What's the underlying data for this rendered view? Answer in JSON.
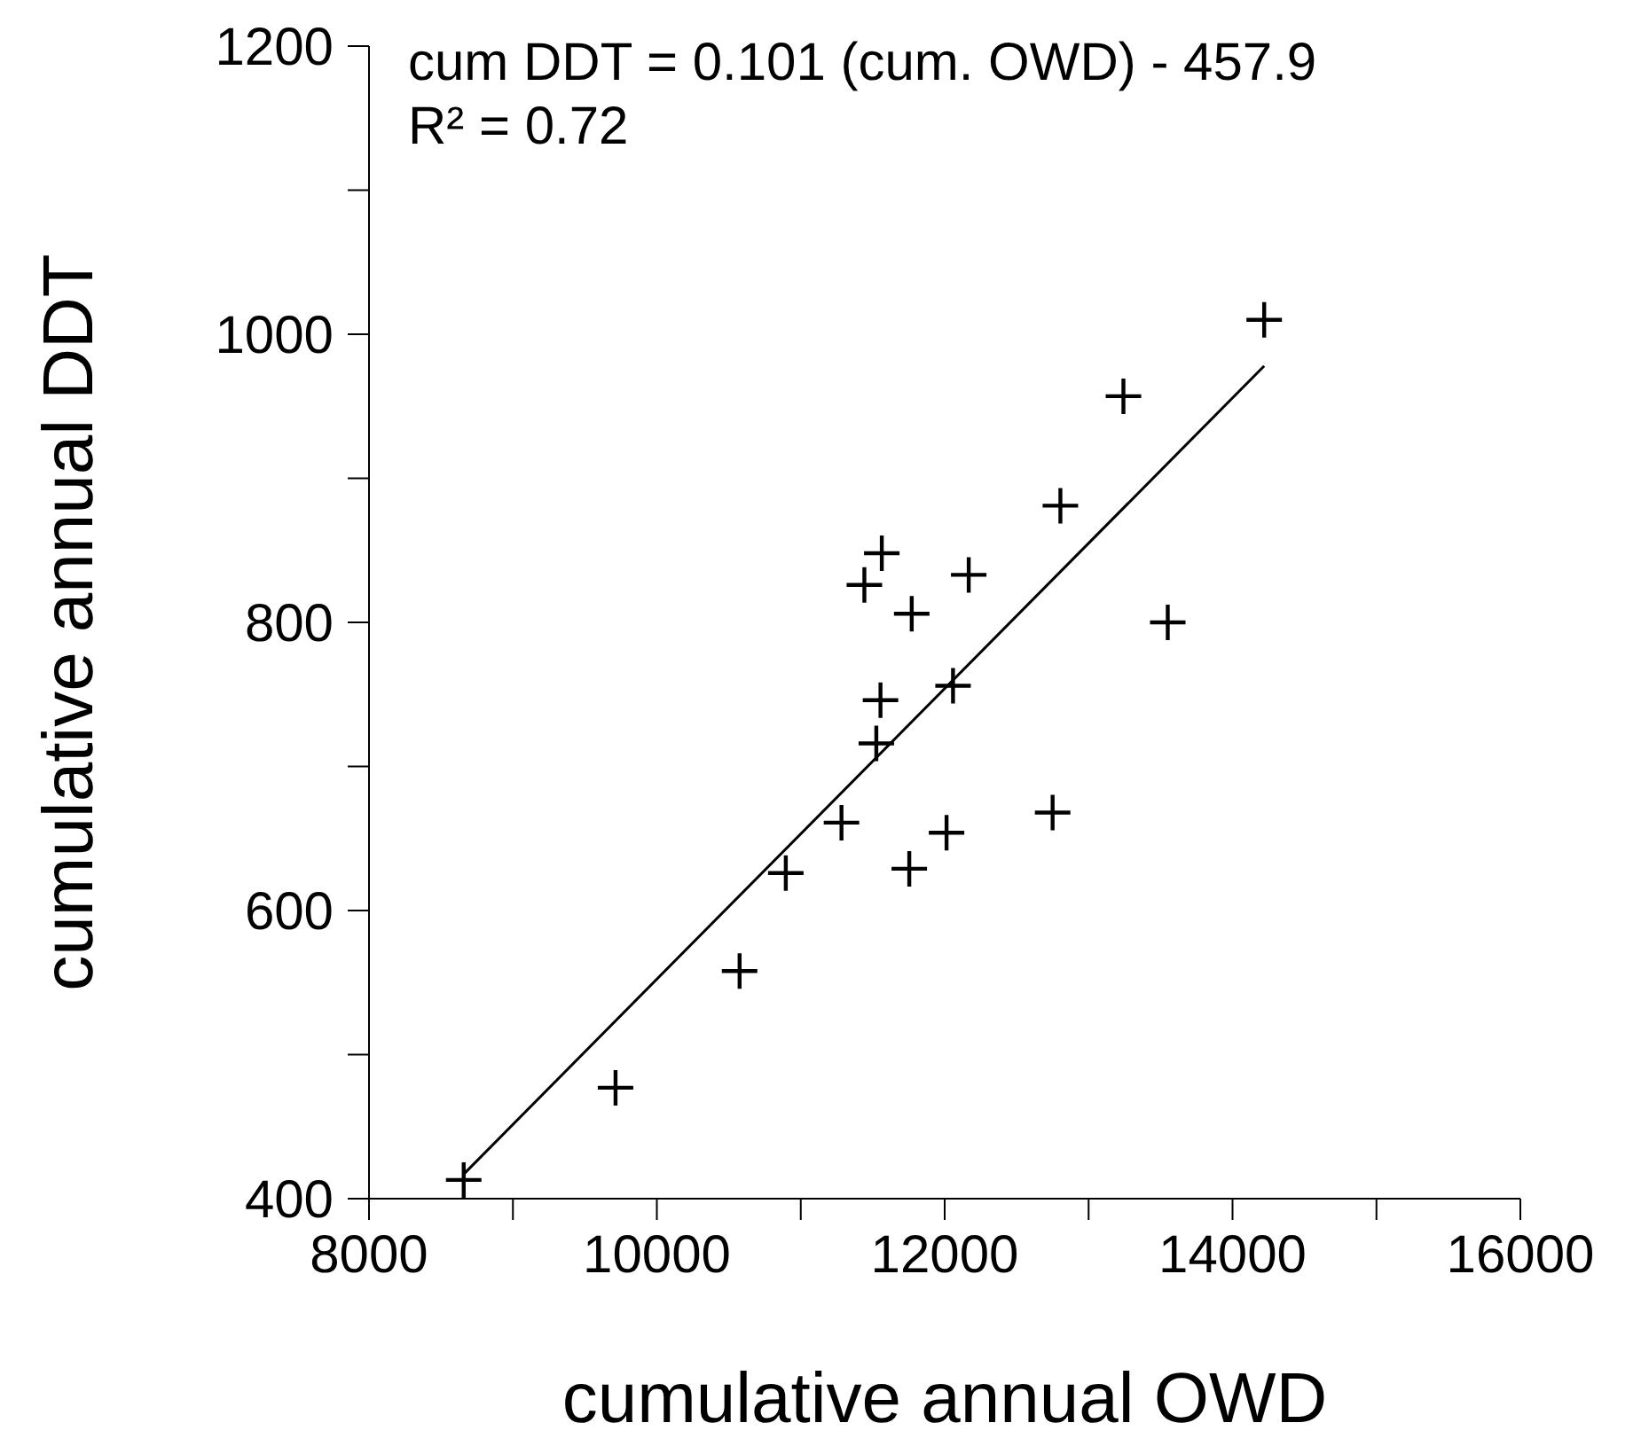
{
  "chart_data": {
    "type": "scatter",
    "xlabel": "cumulative annual OWD",
    "ylabel": "cumulative annual DDT",
    "annotations": [
      "cum DDT = 0.101 (cum. OWD) - 457.9",
      "R² = 0.72"
    ],
    "series": [
      {
        "color": "#000000",
        "marker": "cross",
        "x": [
          8658,
          9713,
          10575,
          10896,
          11283,
          11525,
          11554,
          11754,
          12013,
          12750,
          12058,
          11442,
          11563,
          11771,
          12167,
          12804,
          13550,
          13242,
          14220
        ],
        "values": [
          413,
          477,
          558,
          626,
          661,
          716,
          746,
          629,
          654,
          668,
          756,
          826,
          848,
          806,
          833,
          881,
          800,
          957,
          1010
        ]
      },
      {
        "type": "line",
        "color": "#000000",
        "marker": "none",
        "line_style": "solid",
        "x": [
          8658,
          14220
        ],
        "values": [
          417,
          978
        ]
      }
    ],
    "xlim": [
      8000,
      16000
    ],
    "ylim": [
      400,
      1200
    ],
    "xticks": [
      8000,
      {
        "value": 9000,
        "label": null
      },
      10000,
      {
        "value": 11000,
        "label": null
      },
      12000,
      {
        "value": 13000,
        "label": null
      },
      14000,
      {
        "value": 15000,
        "label": null
      },
      16000
    ],
    "yticks": [
      400,
      {
        "value": 500,
        "label": null
      },
      600,
      {
        "value": 700,
        "label": null
      },
      800,
      {
        "value": 900,
        "label": null
      },
      1000,
      {
        "value": 1100,
        "label": null
      },
      1200
    ],
    "grid": false
  }
}
